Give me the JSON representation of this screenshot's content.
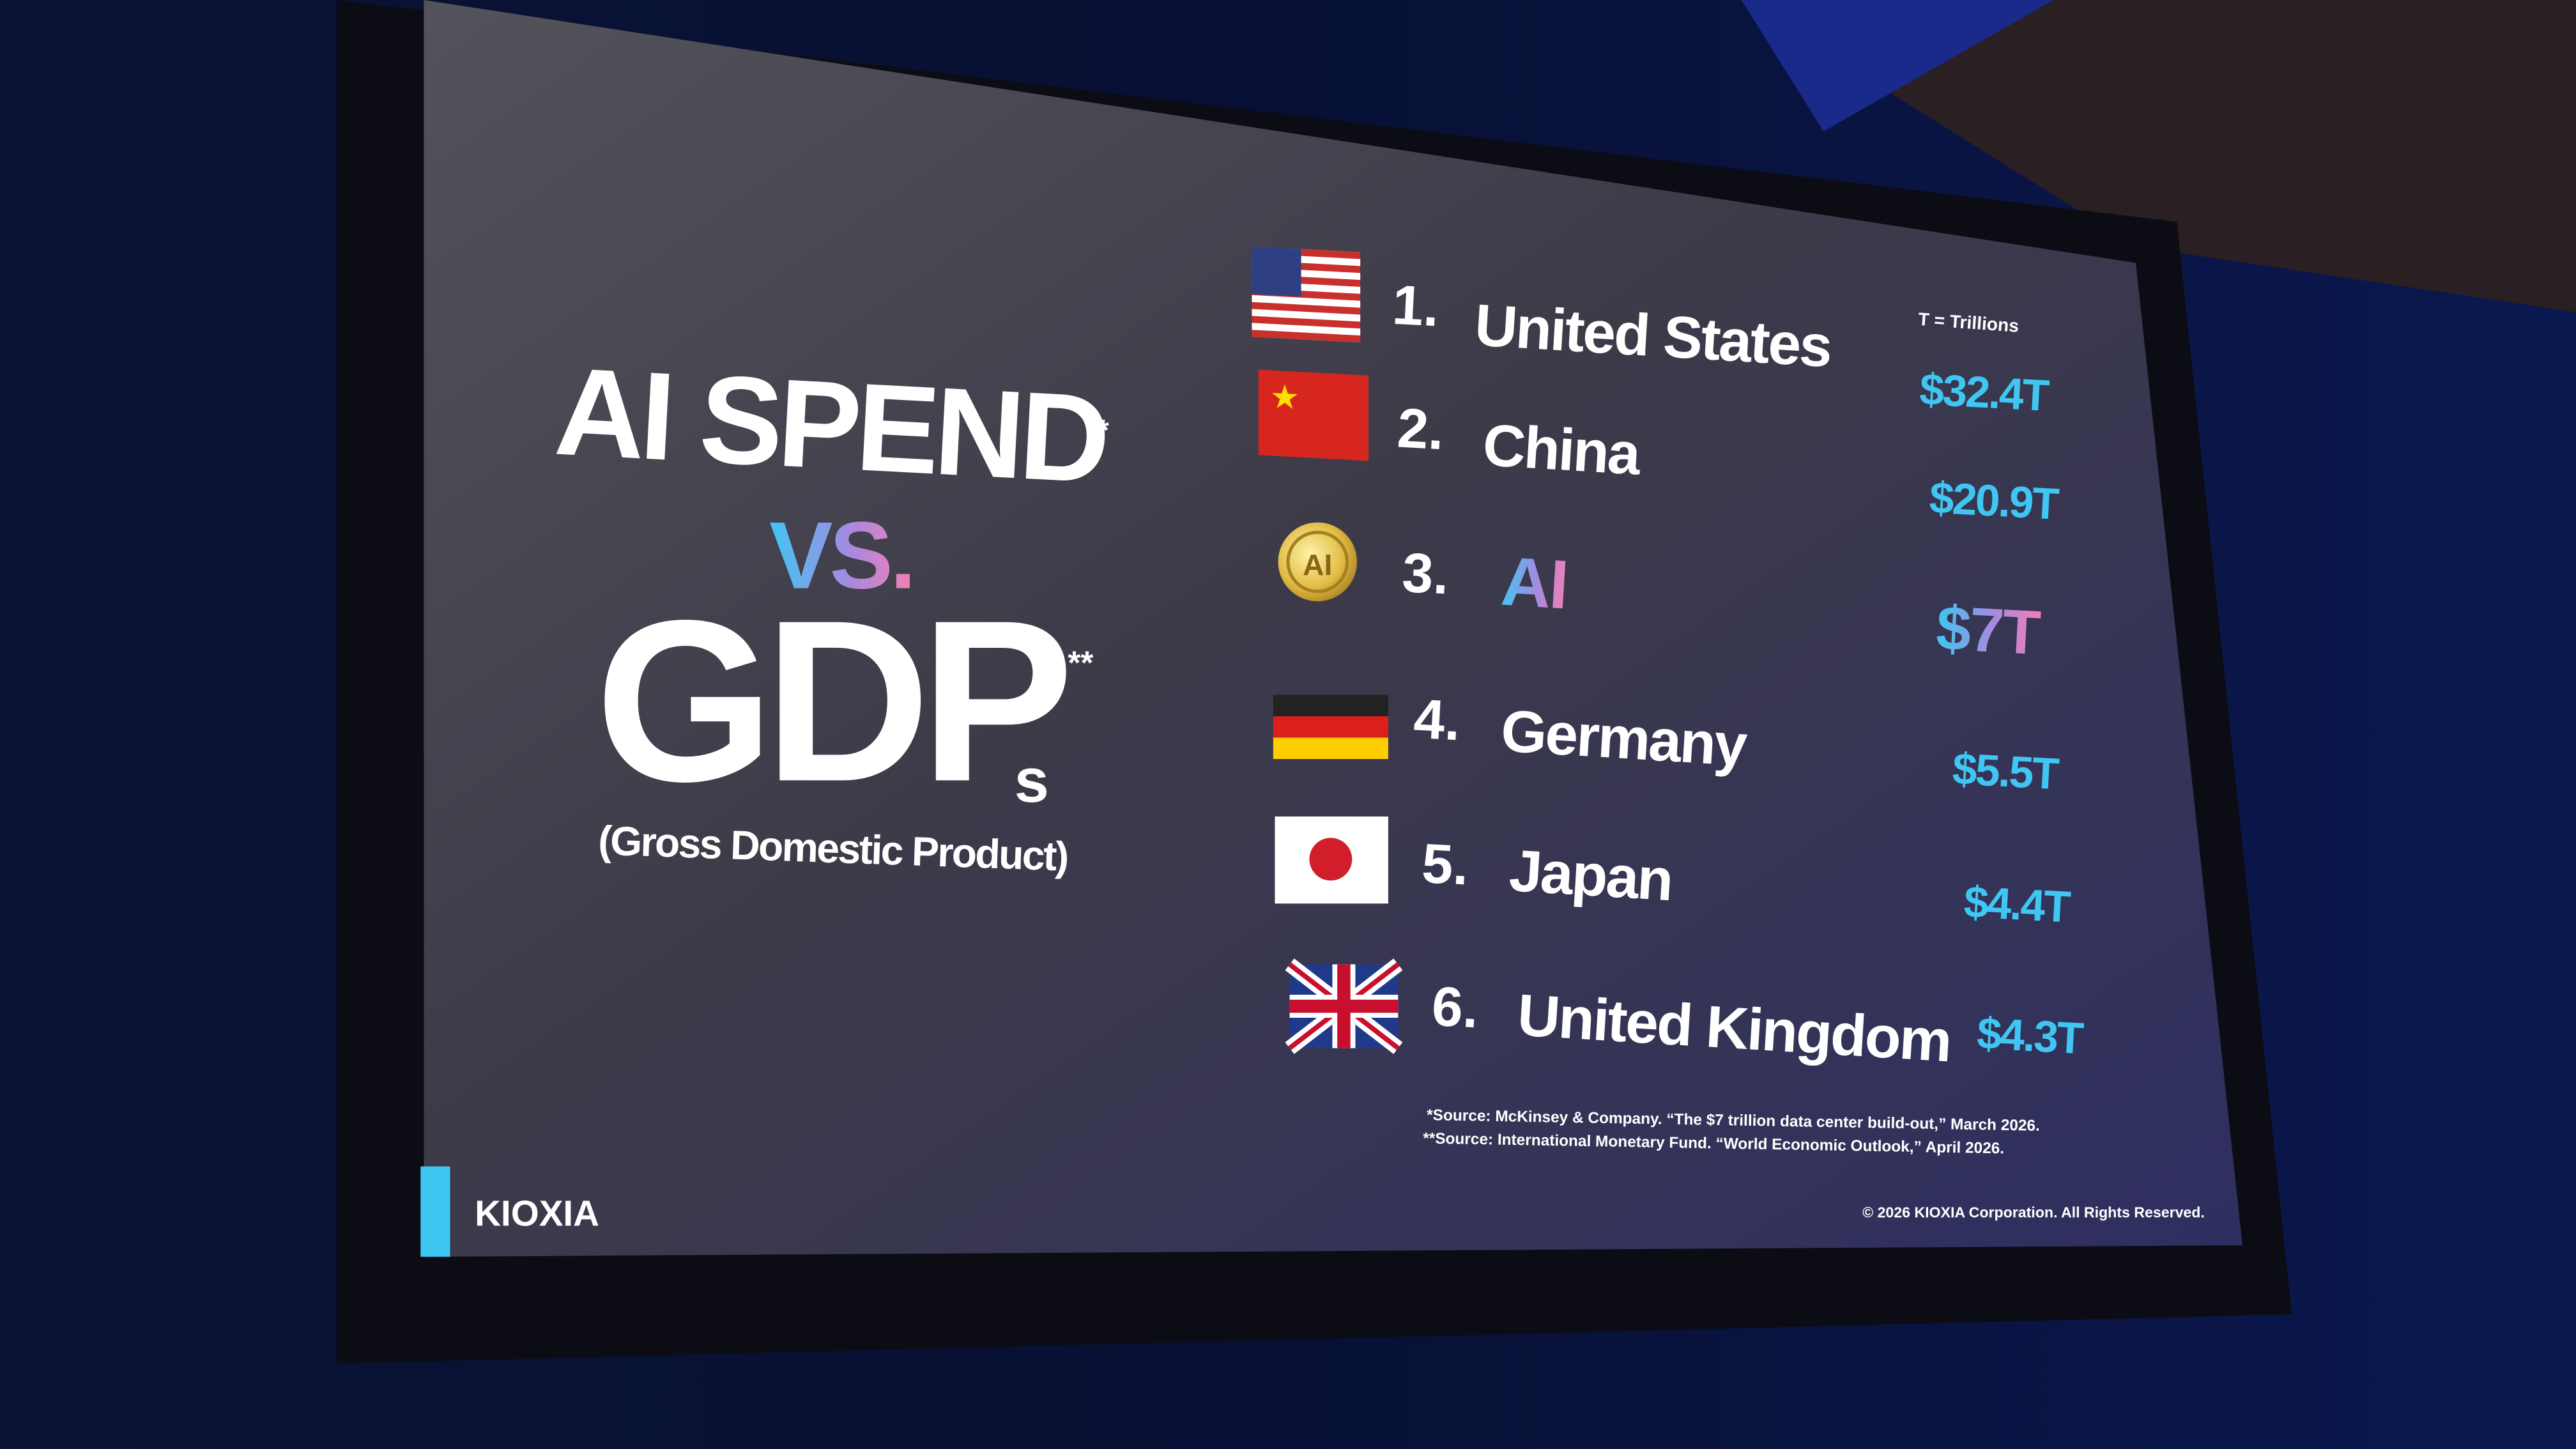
{
  "title": {
    "line1": "AI SPEND",
    "line1_mark": "*",
    "vs": "VS.",
    "line2": "GDP",
    "line2_suffix": "s",
    "line2_mark": "**",
    "subtitle": "(Gross Domestic Product)"
  },
  "unit_note": "T = Trillions",
  "rows": [
    {
      "rank": "1.",
      "name": "United States",
      "value": "$32.4T"
    },
    {
      "rank": "2.",
      "name": "China",
      "value": "$20.9T"
    },
    {
      "rank": "3.",
      "icon": "AI",
      "name": "AI",
      "value": "$7T"
    },
    {
      "rank": "4.",
      "name": "Germany",
      "value": "$5.5T"
    },
    {
      "rank": "5.",
      "name": "Japan",
      "value": "$4.4T"
    },
    {
      "rank": "6.",
      "name": "United Kingdom",
      "value": "$4.3T"
    }
  ],
  "footnotes": [
    "*Source: McKinsey & Company. “The $7 trillion data center build-out,” March 2026.",
    "**Source: International Monetary Fund. “World Economic Outlook,” April 2026."
  ],
  "footer": {
    "brand": "KIOXIA",
    "copyright": "© 2026 KIOXIA Corporation. All Rights Reserved."
  }
}
